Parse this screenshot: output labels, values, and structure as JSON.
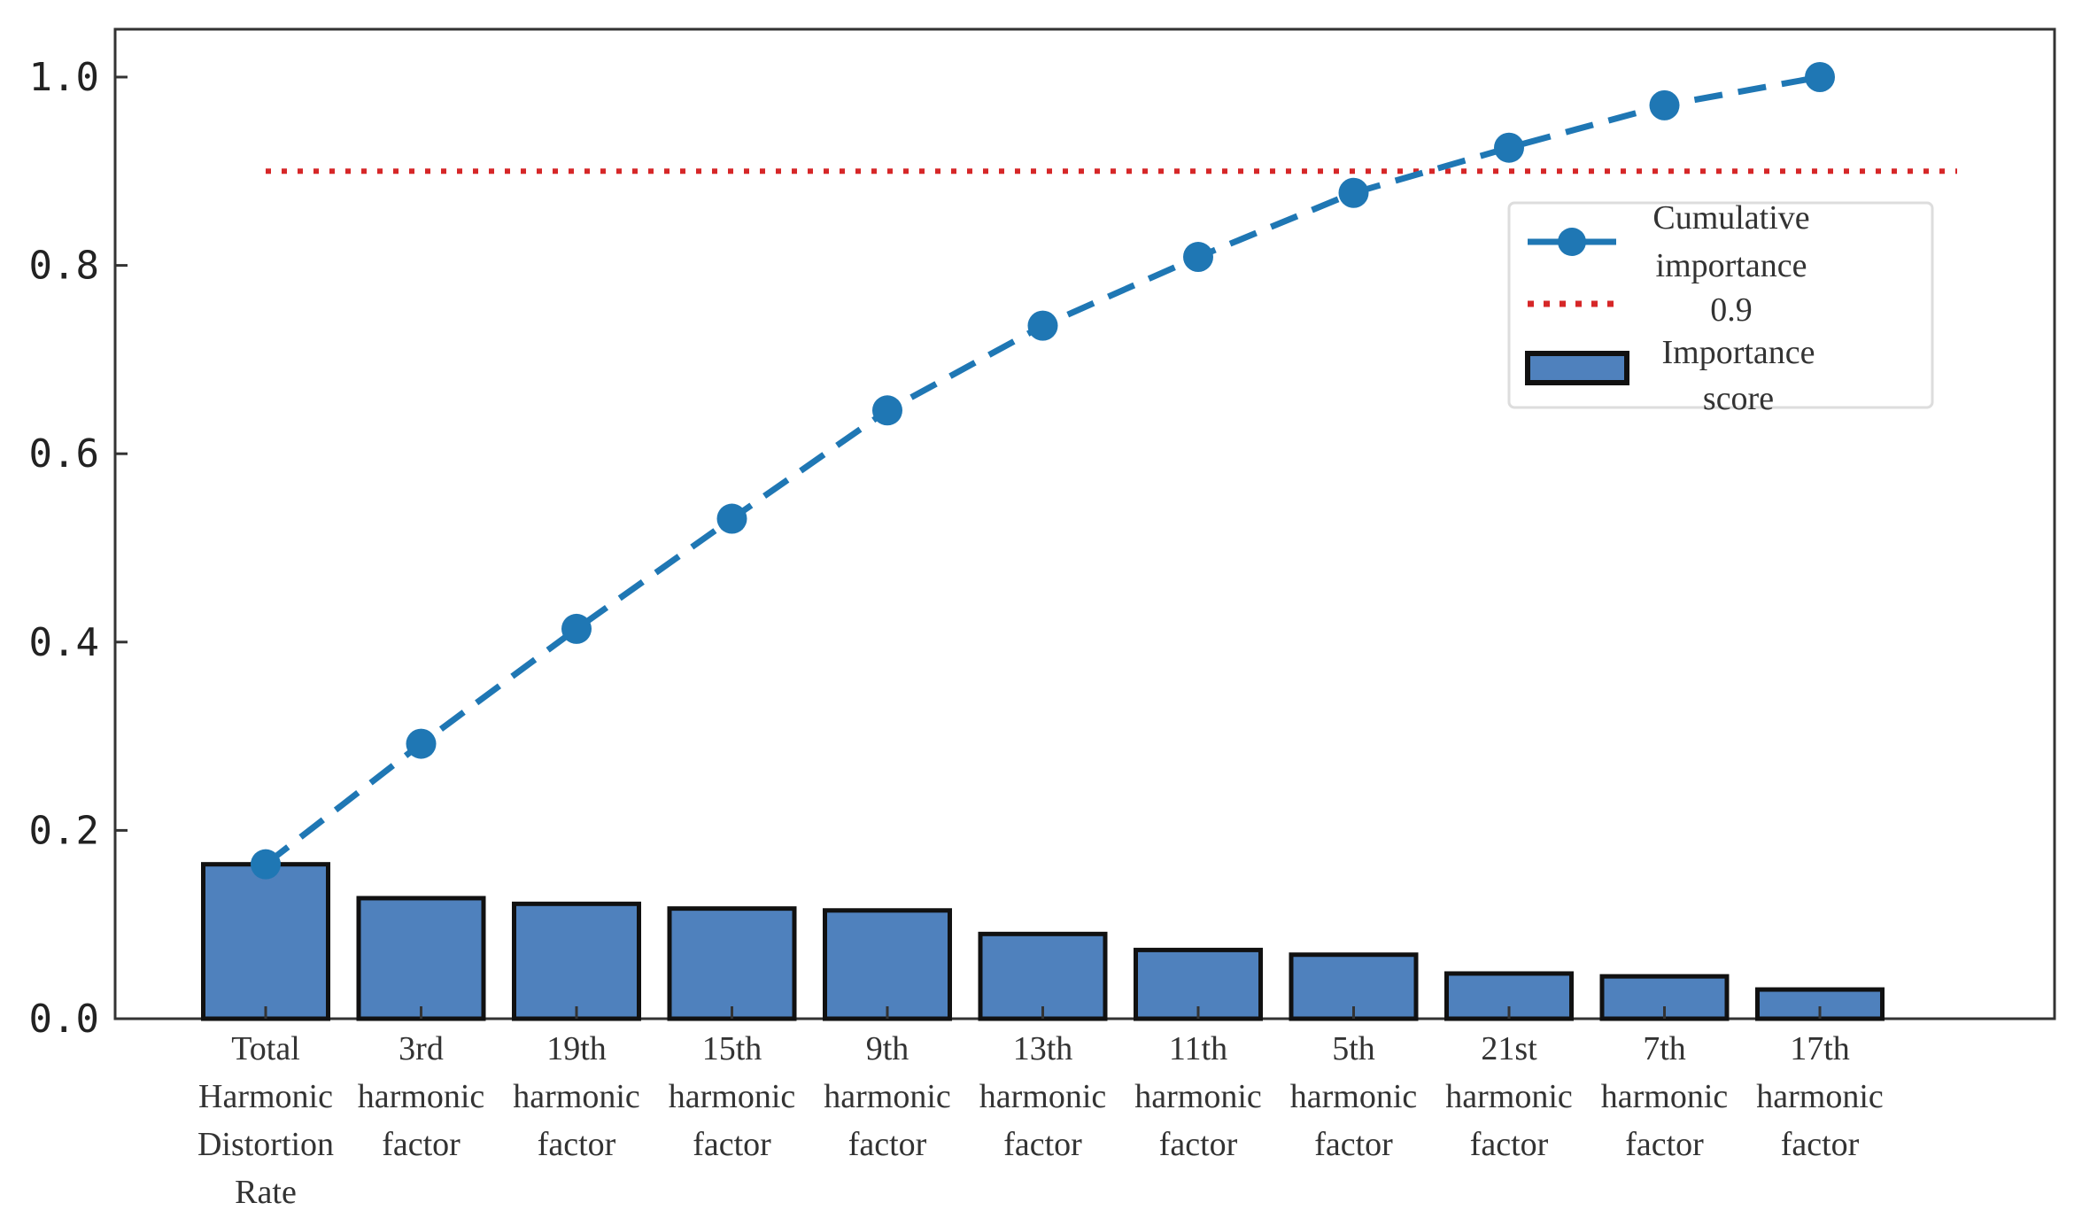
{
  "chart_data": {
    "type": "bar",
    "categories": [
      [
        "Total",
        "Harmonic",
        "Distortion",
        "Rate"
      ],
      [
        "3rd",
        "harmonic",
        "factor"
      ],
      [
        "19th",
        "harmonic",
        "factor"
      ],
      [
        "15th",
        "harmonic",
        "factor"
      ],
      [
        "9th",
        "harmonic",
        "factor"
      ],
      [
        "13th",
        "harmonic",
        "factor"
      ],
      [
        "11th",
        "harmonic",
        "factor"
      ],
      [
        "5th",
        "harmonic",
        "factor"
      ],
      [
        "21st",
        "harmonic",
        "factor"
      ],
      [
        "7th",
        "harmonic",
        "factor"
      ],
      [
        "17th",
        "harmonic",
        "factor"
      ]
    ],
    "series": [
      {
        "name": "Importance score",
        "type": "bar",
        "values": [
          0.164,
          0.128,
          0.122,
          0.117,
          0.115,
          0.09,
          0.073,
          0.068,
          0.048,
          0.045,
          0.031
        ],
        "color": "#4f81bd"
      },
      {
        "name": "Cumulative importance",
        "type": "line",
        "values": [
          0.164,
          0.292,
          0.414,
          0.531,
          0.646,
          0.736,
          0.809,
          0.877,
          0.925,
          0.97,
          1.0
        ],
        "color": "#1f77b4"
      }
    ],
    "threshold": {
      "name": "0.9",
      "value": 0.9,
      "color": "#d62728"
    },
    "yticks": [
      "0.0",
      "0.2",
      "0.4",
      "0.6",
      "0.8",
      "1.0"
    ],
    "ylim": [
      0,
      1.05
    ],
    "title": "",
    "xlabel": "",
    "ylabel": "",
    "grid": false,
    "legend_position": "upper-right",
    "legend": {
      "cumulative": [
        "Cumulative",
        "importance"
      ],
      "threshold": [
        "0.9"
      ],
      "bars": [
        "Importance",
        "score"
      ]
    }
  }
}
